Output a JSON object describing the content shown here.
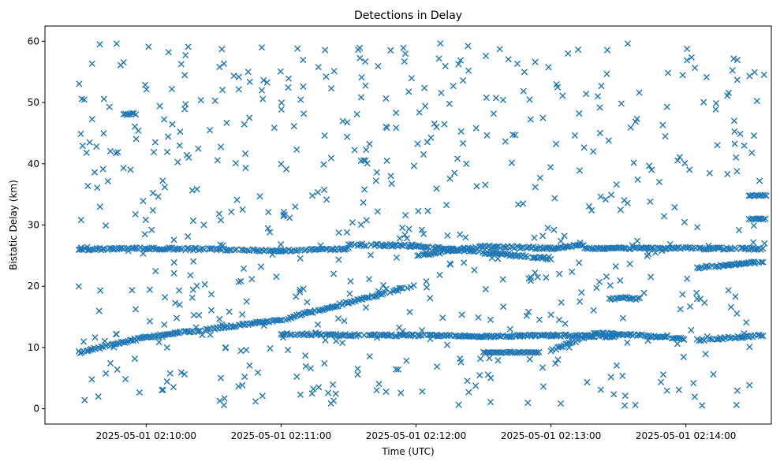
{
  "chart_data": {
    "type": "scatter",
    "title": "Detections in Delay",
    "xlabel": "Time (UTC)",
    "ylabel": "Bistatic Delay (km)",
    "marker": "x",
    "color": "#1f77b4",
    "x_unit": "seconds after 2025-05-01 02:09:00 UTC",
    "xlim": [
      15,
      338
    ],
    "ylim": [
      -2.5,
      62.5
    ],
    "xticks": [
      60,
      120,
      180,
      240,
      300
    ],
    "xtick_labels": [
      "2025-05-01 02:10:00",
      "2025-05-01 02:11:00",
      "2025-05-01 02:12:00",
      "2025-05-01 02:13:00",
      "2025-05-01 02:14:00"
    ],
    "yticks": [
      0,
      10,
      20,
      30,
      40,
      50,
      60
    ],
    "ytick_labels": [
      "0",
      "10",
      "20",
      "30",
      "40",
      "50",
      "60"
    ],
    "grid": false,
    "tracks": [
      {
        "kind": "line",
        "x": [
          30,
          60,
          120,
          180
        ],
        "y": [
          9.2,
          11.7,
          14.5,
          20.2
        ]
      },
      {
        "kind": "line",
        "x": [
          30,
          60,
          90,
          120,
          150
        ],
        "y": [
          26.0,
          26.2,
          26.0,
          25.8,
          26.1
        ]
      },
      {
        "kind": "line",
        "x": [
          120,
          150,
          180,
          210,
          240,
          270
        ],
        "y": [
          12.2,
          12.0,
          12.0,
          11.8,
          12.0,
          11.8
        ]
      },
      {
        "kind": "line",
        "x": [
          150,
          180,
          210,
          240
        ],
        "y": [
          26.8,
          26.6,
          25.5,
          24.5
        ]
      },
      {
        "kind": "line",
        "x": [
          180,
          210,
          240,
          255
        ],
        "y": [
          25.0,
          26.5,
          26.2,
          26.8
        ]
      },
      {
        "kind": "line",
        "x": [
          240,
          260,
          280,
          300
        ],
        "y": [
          9.5,
          12.3,
          12.0,
          11.3
        ]
      },
      {
        "kind": "line",
        "x": [
          255,
          300
        ],
        "y": [
          26.2,
          26.2
        ]
      },
      {
        "kind": "line",
        "x": [
          305,
          335
        ],
        "y": [
          11.2,
          12.0
        ]
      },
      {
        "kind": "line",
        "x": [
          305,
          335
        ],
        "y": [
          23.0,
          24.0
        ]
      },
      {
        "kind": "line",
        "x": [
          300,
          335
        ],
        "y": [
          26.2,
          26.1
        ]
      },
      {
        "kind": "cluster",
        "x": [
          50,
          56
        ],
        "y": [
          48.0,
          48.3
        ]
      },
      {
        "kind": "cluster",
        "x": [
          266,
          280
        ],
        "y": [
          17.8,
          18.2
        ]
      },
      {
        "kind": "cluster",
        "x": [
          210,
          235
        ],
        "y": [
          9.2,
          9.2
        ]
      },
      {
        "kind": "cluster",
        "x": [
          328,
          336
        ],
        "y": [
          34.8,
          34.8
        ]
      },
      {
        "kind": "cluster",
        "x": [
          328,
          336
        ],
        "y": [
          31.0,
          31.0
        ]
      }
    ],
    "noise_points": 640,
    "noise_xrange": [
      30,
      335
    ],
    "noise_yrange": [
      0.5,
      59.8
    ]
  }
}
